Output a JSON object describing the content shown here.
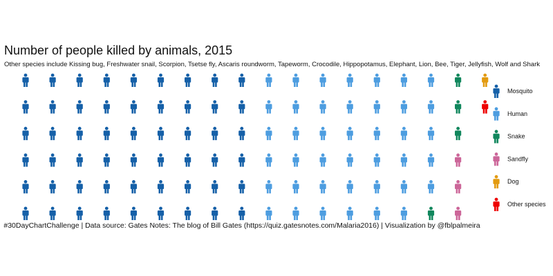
{
  "chart_data": {
    "type": "waffle",
    "title": "Number of people killed by animals, 2015",
    "subtitle": "Other species include Kissing bug, Freshwater snail, Scorpion, Tsetse fly, Ascaris roundworm, Tapeworm, Crocodile, Hippopotamus, Elephant, Lion, Bee, Tiger, Jellyfish, Wolf and Shark",
    "caption": "#30DayChartChallenge | Data source: Gates Notes: The blog of Bill Gates (https://quiz.gatesnotes.com/Malaria2016) | Visualization by @fblpalmeira",
    "rows": 6,
    "fill_order": "column-wise, top to bottom",
    "legend_position": "right",
    "series": [
      {
        "name": "Mosquito",
        "icons": 54,
        "color": "#1560a8"
      },
      {
        "name": "Human",
        "icons": 41,
        "color": "#4d9de0"
      },
      {
        "name": "Snake",
        "icons": 4,
        "color": "#11875d"
      },
      {
        "name": "Sandfly",
        "icons": 3,
        "color": "#cc6699"
      },
      {
        "name": "Dog",
        "icons": 1,
        "color": "#e39b10"
      },
      {
        "name": "Other species",
        "icons": 1,
        "color": "#ee0000"
      }
    ]
  }
}
